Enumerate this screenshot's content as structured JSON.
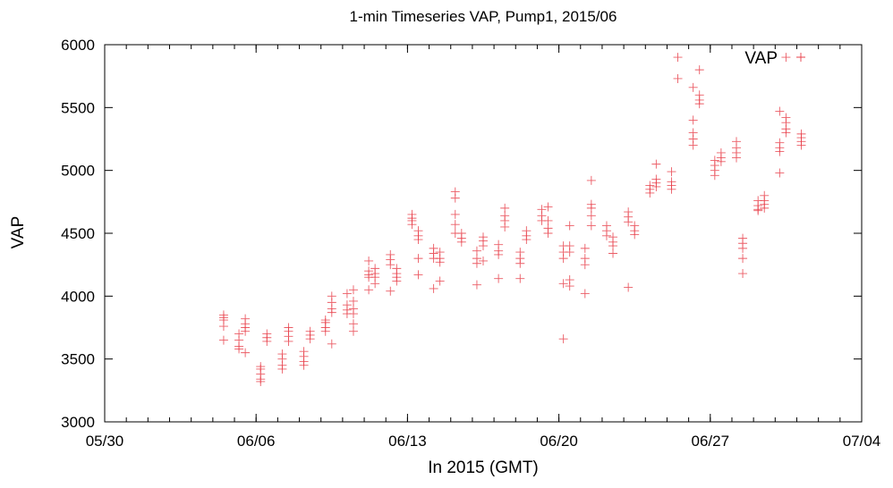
{
  "chart_data": {
    "type": "scatter",
    "title": "1-min Timeseries VAP, Pump1, 2015/06",
    "xlabel": "In 2015 (GMT)",
    "ylabel": "VAP",
    "legend": {
      "label": "VAP",
      "placement": "top-right"
    },
    "marker": "+",
    "color": "#e8404a",
    "x_range": [
      "2015-05-30",
      "2015-07-04"
    ],
    "ylim": [
      3000,
      6000
    ],
    "x_ticks": [
      "05/30",
      "06/06",
      "06/13",
      "06/20",
      "06/27",
      "07/04"
    ],
    "x_tick_dates": [
      "2015-05-30",
      "2015-06-06",
      "2015-06-13",
      "2015-06-20",
      "2015-06-27",
      "2015-07-04"
    ],
    "x_minor_ticks_per_day": true,
    "y_ticks": [
      "3000",
      "3500",
      "4000",
      "4500",
      "5000",
      "5500",
      "6000"
    ],
    "y_tick_values": [
      3000,
      3500,
      4000,
      4500,
      5000,
      5500,
      6000
    ],
    "series": [
      {
        "values": [
          [
            "2015-06-04T12:00",
            3830
          ],
          [
            "2015-06-04T12:00",
            3810
          ],
          [
            "2015-06-04T12:00",
            3850
          ],
          [
            "2015-06-04T12:00",
            3760
          ],
          [
            "2015-06-04T12:00",
            3650
          ],
          [
            "2015-06-05T05:00",
            3650
          ],
          [
            "2015-06-05T05:00",
            3600
          ],
          [
            "2015-06-05T05:00",
            3700
          ],
          [
            "2015-06-05T05:00",
            3580
          ],
          [
            "2015-06-05T12:00",
            3750
          ],
          [
            "2015-06-05T12:00",
            3720
          ],
          [
            "2015-06-05T12:00",
            3780
          ],
          [
            "2015-06-05T12:00",
            3820
          ],
          [
            "2015-06-05T12:00",
            3550
          ],
          [
            "2015-06-06T05:00",
            3420
          ],
          [
            "2015-06-06T05:00",
            3380
          ],
          [
            "2015-06-06T05:00",
            3440
          ],
          [
            "2015-06-06T05:00",
            3340
          ],
          [
            "2015-06-06T05:00",
            3320
          ],
          [
            "2015-06-06T12:00",
            3670
          ],
          [
            "2015-06-06T12:00",
            3640
          ],
          [
            "2015-06-06T12:00",
            3700
          ],
          [
            "2015-06-07T05:00",
            3450
          ],
          [
            "2015-06-07T05:00",
            3420
          ],
          [
            "2015-06-07T05:00",
            3500
          ],
          [
            "2015-06-07T05:00",
            3540
          ],
          [
            "2015-06-07T12:00",
            3680
          ],
          [
            "2015-06-07T12:00",
            3640
          ],
          [
            "2015-06-07T12:00",
            3720
          ],
          [
            "2015-06-07T12:00",
            3750
          ],
          [
            "2015-06-08T05:00",
            3480
          ],
          [
            "2015-06-08T05:00",
            3450
          ],
          [
            "2015-06-08T05:00",
            3520
          ],
          [
            "2015-06-08T05:00",
            3560
          ],
          [
            "2015-06-08T12:00",
            3690
          ],
          [
            "2015-06-08T12:00",
            3660
          ],
          [
            "2015-06-08T12:00",
            3720
          ],
          [
            "2015-06-09T05:00",
            3750
          ],
          [
            "2015-06-09T05:00",
            3720
          ],
          [
            "2015-06-09T05:00",
            3790
          ],
          [
            "2015-06-09T05:00",
            3810
          ],
          [
            "2015-06-09T12:00",
            3900
          ],
          [
            "2015-06-09T12:00",
            3870
          ],
          [
            "2015-06-09T12:00",
            3950
          ],
          [
            "2015-06-09T12:00",
            4000
          ],
          [
            "2015-06-09T12:00",
            3620
          ],
          [
            "2015-06-10T05:00",
            3890
          ],
          [
            "2015-06-10T05:00",
            3860
          ],
          [
            "2015-06-10T05:00",
            3930
          ],
          [
            "2015-06-10T05:00",
            4020
          ],
          [
            "2015-06-10T12:00",
            3900
          ],
          [
            "2015-06-10T12:00",
            3860
          ],
          [
            "2015-06-10T12:00",
            3960
          ],
          [
            "2015-06-10T12:00",
            4050
          ],
          [
            "2015-06-10T12:00",
            3780
          ],
          [
            "2015-06-10T12:00",
            3720
          ],
          [
            "2015-06-11T05:00",
            4170
          ],
          [
            "2015-06-11T05:00",
            4150
          ],
          [
            "2015-06-11T05:00",
            4200
          ],
          [
            "2015-06-11T05:00",
            4280
          ],
          [
            "2015-06-11T05:00",
            4050
          ],
          [
            "2015-06-11T12:00",
            4180
          ],
          [
            "2015-06-11T12:00",
            4150
          ],
          [
            "2015-06-11T12:00",
            4220
          ],
          [
            "2015-06-11T12:00",
            4100
          ],
          [
            "2015-06-12T05:00",
            4290
          ],
          [
            "2015-06-12T05:00",
            4250
          ],
          [
            "2015-06-12T05:00",
            4330
          ],
          [
            "2015-06-12T05:00",
            4040
          ],
          [
            "2015-06-12T12:00",
            4180
          ],
          [
            "2015-06-12T12:00",
            4150
          ],
          [
            "2015-06-12T12:00",
            4220
          ],
          [
            "2015-06-12T12:00",
            4120
          ],
          [
            "2015-06-13T05:00",
            4620
          ],
          [
            "2015-06-13T05:00",
            4600
          ],
          [
            "2015-06-13T05:00",
            4650
          ],
          [
            "2015-06-13T05:00",
            4570
          ],
          [
            "2015-06-13T12:00",
            4480
          ],
          [
            "2015-06-13T12:00",
            4450
          ],
          [
            "2015-06-13T12:00",
            4520
          ],
          [
            "2015-06-13T12:00",
            4300
          ],
          [
            "2015-06-13T12:00",
            4170
          ],
          [
            "2015-06-14T05:00",
            4340
          ],
          [
            "2015-06-14T05:00",
            4300
          ],
          [
            "2015-06-14T05:00",
            4380
          ],
          [
            "2015-06-14T05:00",
            4060
          ],
          [
            "2015-06-14T12:00",
            4300
          ],
          [
            "2015-06-14T12:00",
            4270
          ],
          [
            "2015-06-14T12:00",
            4350
          ],
          [
            "2015-06-14T12:00",
            4120
          ],
          [
            "2015-06-15T05:00",
            4500
          ],
          [
            "2015-06-15T05:00",
            4650
          ],
          [
            "2015-06-15T05:00",
            4780
          ],
          [
            "2015-06-15T05:00",
            4830
          ],
          [
            "2015-06-15T05:00",
            4570
          ],
          [
            "2015-06-15T12:00",
            4460
          ],
          [
            "2015-06-15T12:00",
            4430
          ],
          [
            "2015-06-15T12:00",
            4500
          ],
          [
            "2015-06-16T05:00",
            4300
          ],
          [
            "2015-06-16T05:00",
            4260
          ],
          [
            "2015-06-16T05:00",
            4360
          ],
          [
            "2015-06-16T05:00",
            4090
          ],
          [
            "2015-06-16T12:00",
            4440
          ],
          [
            "2015-06-16T12:00",
            4400
          ],
          [
            "2015-06-16T12:00",
            4470
          ],
          [
            "2015-06-16T12:00",
            4280
          ],
          [
            "2015-06-17T05:00",
            4360
          ],
          [
            "2015-06-17T05:00",
            4330
          ],
          [
            "2015-06-17T05:00",
            4410
          ],
          [
            "2015-06-17T05:00",
            4140
          ],
          [
            "2015-06-17T12:00",
            4640
          ],
          [
            "2015-06-17T12:00",
            4600
          ],
          [
            "2015-06-17T12:00",
            4700
          ],
          [
            "2015-06-17T12:00",
            4550
          ],
          [
            "2015-06-18T05:00",
            4300
          ],
          [
            "2015-06-18T05:00",
            4260
          ],
          [
            "2015-06-18T05:00",
            4350
          ],
          [
            "2015-06-18T05:00",
            4140
          ],
          [
            "2015-06-18T12:00",
            4480
          ],
          [
            "2015-06-18T12:00",
            4450
          ],
          [
            "2015-06-18T12:00",
            4520
          ],
          [
            "2015-06-19T05:00",
            4640
          ],
          [
            "2015-06-19T05:00",
            4600
          ],
          [
            "2015-06-19T05:00",
            4690
          ],
          [
            "2015-06-19T12:00",
            4540
          ],
          [
            "2015-06-19T12:00",
            4500
          ],
          [
            "2015-06-19T12:00",
            4600
          ],
          [
            "2015-06-19T12:00",
            4710
          ],
          [
            "2015-06-20T05:00",
            4350
          ],
          [
            "2015-06-20T05:00",
            4300
          ],
          [
            "2015-06-20T05:00",
            4400
          ],
          [
            "2015-06-20T05:00",
            4100
          ],
          [
            "2015-06-20T05:00",
            3660
          ],
          [
            "2015-06-20T12:00",
            4400
          ],
          [
            "2015-06-20T12:00",
            4350
          ],
          [
            "2015-06-20T12:00",
            4560
          ],
          [
            "2015-06-20T12:00",
            4130
          ],
          [
            "2015-06-20T12:00",
            4080
          ],
          [
            "2015-06-21T05:00",
            4300
          ],
          [
            "2015-06-21T05:00",
            4250
          ],
          [
            "2015-06-21T05:00",
            4380
          ],
          [
            "2015-06-21T05:00",
            4020
          ],
          [
            "2015-06-21T12:00",
            4730
          ],
          [
            "2015-06-21T12:00",
            4700
          ],
          [
            "2015-06-21T12:00",
            4640
          ],
          [
            "2015-06-21T12:00",
            4920
          ],
          [
            "2015-06-21T12:00",
            4560
          ],
          [
            "2015-06-22T05:00",
            4520
          ],
          [
            "2015-06-22T05:00",
            4480
          ],
          [
            "2015-06-22T05:00",
            4560
          ],
          [
            "2015-06-22T12:00",
            4430
          ],
          [
            "2015-06-22T12:00",
            4400
          ],
          [
            "2015-06-22T12:00",
            4470
          ],
          [
            "2015-06-22T12:00",
            4340
          ],
          [
            "2015-06-23T05:00",
            4630
          ],
          [
            "2015-06-23T05:00",
            4590
          ],
          [
            "2015-06-23T05:00",
            4670
          ],
          [
            "2015-06-23T05:00",
            4070
          ],
          [
            "2015-06-23T12:00",
            4520
          ],
          [
            "2015-06-23T12:00",
            4490
          ],
          [
            "2015-06-23T12:00",
            4560
          ],
          [
            "2015-06-24T05:00",
            4850
          ],
          [
            "2015-06-24T05:00",
            4820
          ],
          [
            "2015-06-24T05:00",
            4880
          ],
          [
            "2015-06-24T12:00",
            4900
          ],
          [
            "2015-06-24T12:00",
            4870
          ],
          [
            "2015-06-24T12:00",
            4930
          ],
          [
            "2015-06-24T12:00",
            5050
          ],
          [
            "2015-06-25T05:00",
            4880
          ],
          [
            "2015-06-25T05:00",
            4850
          ],
          [
            "2015-06-25T05:00",
            4910
          ],
          [
            "2015-06-25T05:00",
            4990
          ],
          [
            "2015-06-25T12:00",
            5900
          ],
          [
            "2015-06-25T12:00",
            5730
          ],
          [
            "2015-06-26T05:00",
            5250
          ],
          [
            "2015-06-26T05:00",
            5200
          ],
          [
            "2015-06-26T05:00",
            5300
          ],
          [
            "2015-06-26T05:00",
            5400
          ],
          [
            "2015-06-26T05:00",
            5660
          ],
          [
            "2015-06-26T12:00",
            5560
          ],
          [
            "2015-06-26T12:00",
            5530
          ],
          [
            "2015-06-26T12:00",
            5600
          ],
          [
            "2015-06-26T12:00",
            5800
          ],
          [
            "2015-06-27T05:00",
            5040
          ],
          [
            "2015-06-27T05:00",
            5000
          ],
          [
            "2015-06-27T05:00",
            5080
          ],
          [
            "2015-06-27T05:00",
            4960
          ],
          [
            "2015-06-27T12:00",
            5100
          ],
          [
            "2015-06-27T12:00",
            5070
          ],
          [
            "2015-06-27T12:00",
            5140
          ],
          [
            "2015-06-28T05:00",
            5140
          ],
          [
            "2015-06-28T05:00",
            5100
          ],
          [
            "2015-06-28T05:00",
            5180
          ],
          [
            "2015-06-28T05:00",
            5230
          ],
          [
            "2015-06-28T12:00",
            4420
          ],
          [
            "2015-06-28T12:00",
            4380
          ],
          [
            "2015-06-28T12:00",
            4460
          ],
          [
            "2015-06-28T12:00",
            4300
          ],
          [
            "2015-06-28T12:00",
            4180
          ],
          [
            "2015-06-29T05:00",
            4720
          ],
          [
            "2015-06-29T05:00",
            4690
          ],
          [
            "2015-06-29T05:00",
            4760
          ],
          [
            "2015-06-29T05:00",
            4680
          ],
          [
            "2015-06-29T12:00",
            4760
          ],
          [
            "2015-06-29T12:00",
            4730
          ],
          [
            "2015-06-29T12:00",
            4800
          ],
          [
            "2015-06-29T12:00",
            4700
          ],
          [
            "2015-06-30T05:00",
            5180
          ],
          [
            "2015-06-30T05:00",
            5150
          ],
          [
            "2015-06-30T05:00",
            5220
          ],
          [
            "2015-06-30T05:00",
            5470
          ],
          [
            "2015-06-30T05:00",
            4980
          ],
          [
            "2015-06-30T12:00",
            5330
          ],
          [
            "2015-06-30T12:00",
            5300
          ],
          [
            "2015-06-30T12:00",
            5380
          ],
          [
            "2015-06-30T12:00",
            5420
          ],
          [
            "2015-06-30T12:00",
            5900
          ],
          [
            "2015-07-01T05:00",
            5260
          ],
          [
            "2015-07-01T05:00",
            5230
          ],
          [
            "2015-07-01T05:00",
            5290
          ],
          [
            "2015-07-01T05:00",
            5200
          ]
        ]
      }
    ]
  }
}
